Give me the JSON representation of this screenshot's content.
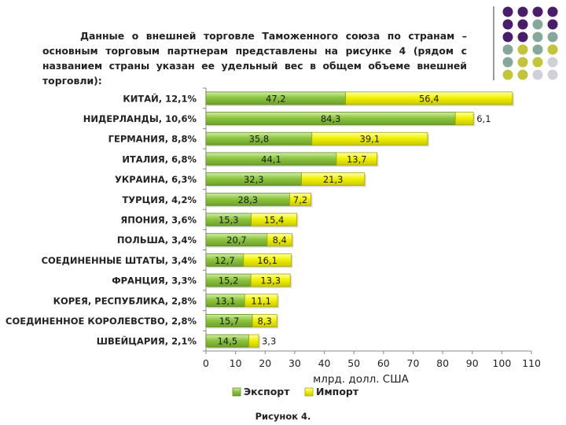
{
  "intro_text": "Данные о внешней торговле Таможенного союза по странам – основным торговым партнерам представлены на рисунке 4 (рядом с названием страны указан ее удельный вес в общем объеме внешней торговли):",
  "caption": "Рисунок 4.",
  "colors": {
    "export": "#8cc63f",
    "export_edge": "#5e8c22",
    "import": "#f2f200",
    "import_edge": "#a8a800",
    "deco_purple": "#4a1d6b",
    "deco_teal": "#86a89a",
    "deco_olive": "#c2c43a",
    "deco_gray": "#d0d0d8"
  },
  "chart_data": {
    "type": "bar",
    "orientation": "horizontal",
    "stacked": true,
    "title": "",
    "xlabel": "млрд. долл. США",
    "ylabel": "",
    "xlim": [
      0,
      110
    ],
    "xticks": [
      0,
      10,
      20,
      30,
      40,
      50,
      60,
      70,
      80,
      90,
      100,
      110
    ],
    "grid": false,
    "legend_position": "bottom",
    "categories": [
      "КИТАЙ, 12,1%",
      "НИДЕРЛАНДЫ, 10,6%",
      "ГЕРМАНИЯ, 8,8%",
      "ИТАЛИЯ, 6,8%",
      "УКРАИНА, 6,3%",
      "ТУРЦИЯ, 4,2%",
      "ЯПОНИЯ, 3,6%",
      "ПОЛЬША, 3,4%",
      "СОЕДИНЕННЫЕ ШТАТЫ, 3,4%",
      "ФРАНЦИЯ, 3,3%",
      "КОРЕЯ, РЕСПУБЛИКА, 2,8%",
      "СОЕДИНЕННОЕ КОРОЛЕВСТВО, 2,8%",
      "ШВЕЙЦАРИЯ, 2,1%"
    ],
    "series": [
      {
        "name": "Экспорт",
        "values": [
          47.2,
          84.3,
          35.8,
          44.1,
          32.3,
          28.3,
          15.3,
          20.7,
          12.7,
          15.2,
          13.1,
          15.7,
          14.5
        ],
        "labels": [
          "47,2",
          "84,3",
          "35,8",
          "44,1",
          "32,3",
          "28,3",
          "15,3",
          "20,7",
          "12,7",
          "15,2",
          "13,1",
          "15,7",
          "14,5"
        ]
      },
      {
        "name": "Импорт",
        "values": [
          56.4,
          6.1,
          39.1,
          13.7,
          21.3,
          7.2,
          15.4,
          8.4,
          16.1,
          13.3,
          11.1,
          8.3,
          3.3
        ],
        "labels": [
          "56,4",
          "6,1",
          "39,1",
          "13,7",
          "21,3",
          "7,2",
          "15,4",
          "8,4",
          "16,1",
          "13,3",
          "11,1",
          "8,3",
          "3,3"
        ]
      }
    ]
  }
}
